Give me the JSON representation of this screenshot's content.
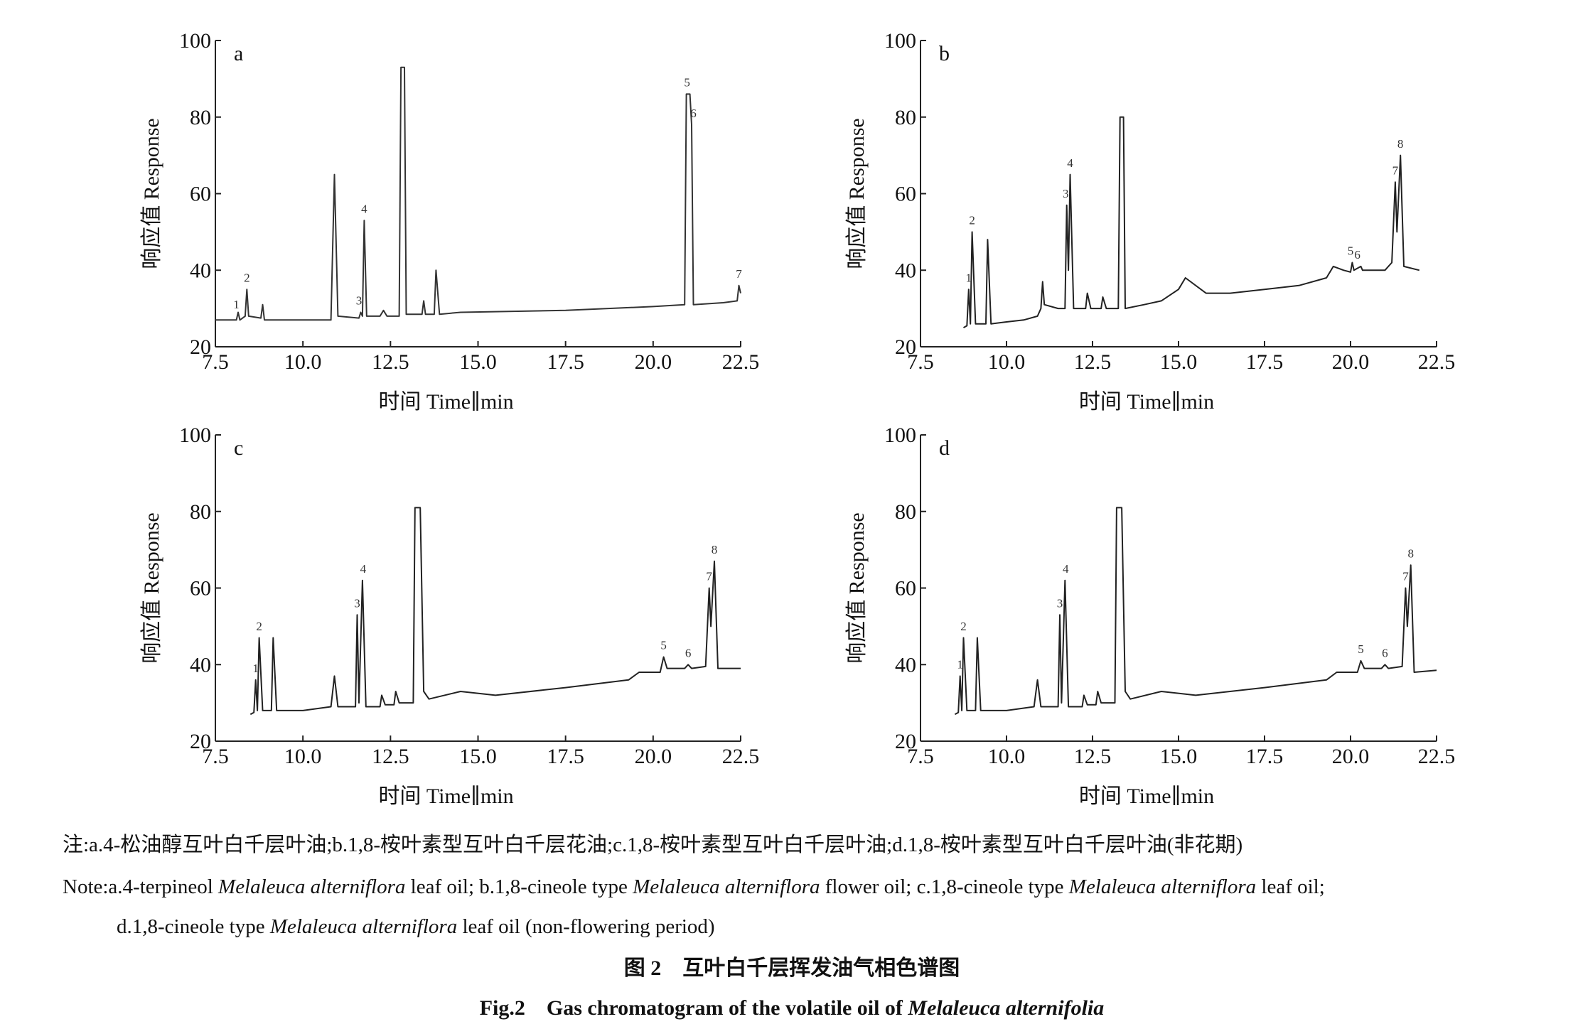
{
  "chart_data": [
    {
      "type": "line",
      "title": "a",
      "x_label": "时间 Time∥min",
      "y_label": "响应值 Response",
      "xlim": [
        7.5,
        22.5
      ],
      "ylim": [
        20,
        100
      ],
      "xticks": [
        7.5,
        {
          "value": 10,
          "label": "10.0"
        },
        12.5,
        {
          "value": 15,
          "label": "15.0"
        },
        17.5,
        {
          "value": 20,
          "label": "20.0"
        },
        22.5
      ],
      "yticks": [
        20,
        40,
        60,
        80,
        100
      ],
      "series": [
        {
          "color": "#333333",
          "x": [
            7.5,
            8.1,
            8.15,
            8.2,
            8.35,
            8.4,
            8.45,
            8.8,
            8.85,
            8.9,
            10.8,
            10.9,
            11.0,
            11.6,
            11.65,
            11.7,
            11.75,
            11.82,
            12.2,
            12.3,
            12.4,
            12.75,
            12.8,
            12.9,
            12.95,
            13.4,
            13.45,
            13.5,
            13.75,
            13.8,
            13.9,
            14.5,
            17.5,
            20.0,
            20.9,
            20.95,
            21.05,
            21.1,
            21.15,
            22.0,
            22.4,
            22.45,
            22.5
          ],
          "values": [
            27,
            27,
            29,
            27,
            28,
            35,
            28,
            27.5,
            31,
            27,
            27,
            65,
            28,
            27.5,
            29,
            28,
            53,
            28,
            28,
            29.5,
            28,
            28,
            93,
            93,
            28.5,
            28.5,
            32,
            28.5,
            28.5,
            40,
            28.5,
            29,
            29.5,
            30.5,
            31,
            86,
            86,
            78,
            31,
            31.5,
            32,
            36,
            34
          ]
        }
      ],
      "annotations": [
        {
          "text": "1",
          "x": 8.1,
          "y": 30
        },
        {
          "text": "2",
          "x": 8.4,
          "y": 37
        },
        {
          "text": "3",
          "x": 11.6,
          "y": 31
        },
        {
          "text": "4",
          "x": 11.75,
          "y": 55
        },
        {
          "text": "5",
          "x": 20.97,
          "y": 88
        },
        {
          "text": "6",
          "x": 21.15,
          "y": 80
        },
        {
          "text": "7",
          "x": 22.45,
          "y": 38
        }
      ]
    },
    {
      "type": "line",
      "title": "b",
      "x_label": "时间 Time∥min",
      "y_label": "响应值 Response",
      "xlim": [
        7.5,
        22.5
      ],
      "ylim": [
        20,
        100
      ],
      "xticks": [
        7.5,
        {
          "value": 10,
          "label": "10.0"
        },
        12.5,
        {
          "value": 15,
          "label": "15.0"
        },
        17.5,
        {
          "value": 20,
          "label": "20.0"
        },
        22.5
      ],
      "yticks": [
        20,
        40,
        60,
        80,
        100
      ],
      "series": [
        {
          "color": "#222222",
          "x": [
            8.75,
            8.85,
            8.9,
            8.95,
            9.0,
            9.1,
            9.4,
            9.45,
            9.55,
            10.0,
            10.5,
            10.9,
            11.0,
            11.05,
            11.1,
            11.5,
            11.7,
            11.75,
            11.8,
            11.85,
            11.95,
            12.3,
            12.35,
            12.45,
            12.75,
            12.8,
            12.9,
            13.25,
            13.3,
            13.4,
            13.45,
            14.0,
            14.5,
            15.0,
            15.2,
            15.8,
            16.5,
            17.5,
            18.5,
            19.3,
            19.5,
            19.8,
            20.0,
            20.05,
            20.1,
            20.3,
            20.35,
            21.0,
            21.2,
            21.3,
            21.35,
            21.45,
            21.55,
            22.0
          ],
          "values": [
            25,
            25.5,
            35,
            26,
            50,
            26,
            26,
            48,
            26,
            26.5,
            27,
            28,
            30,
            37,
            31,
            30,
            30,
            57,
            40,
            65,
            30,
            30,
            34,
            30,
            30,
            33,
            30,
            30,
            80,
            80,
            30,
            31,
            32,
            35,
            38,
            34,
            34,
            35,
            36,
            38,
            41,
            40,
            39.5,
            42,
            40,
            41,
            40,
            40,
            42,
            63,
            50,
            70,
            41,
            40
          ]
        }
      ],
      "annotations": [
        {
          "text": "1",
          "x": 8.9,
          "y": 37
        },
        {
          "text": "2",
          "x": 9.0,
          "y": 52
        },
        {
          "text": "3",
          "x": 11.72,
          "y": 59
        },
        {
          "text": "4",
          "x": 11.85,
          "y": 67
        },
        {
          "text": "5",
          "x": 20.0,
          "y": 44
        },
        {
          "text": "6",
          "x": 20.2,
          "y": 43
        },
        {
          "text": "7",
          "x": 21.3,
          "y": 65
        },
        {
          "text": "8",
          "x": 21.45,
          "y": 72
        }
      ]
    },
    {
      "type": "line",
      "title": "c",
      "x_label": "时间 Time∥min",
      "y_label": "响应值 Response",
      "xlim": [
        7.5,
        22.5
      ],
      "ylim": [
        20,
        100
      ],
      "xticks": [
        7.5,
        {
          "value": 10,
          "label": "10.0"
        },
        12.5,
        {
          "value": 15,
          "label": "15.0"
        },
        17.5,
        {
          "value": 20,
          "label": "20.0"
        },
        22.5
      ],
      "yticks": [
        20,
        40,
        60,
        80,
        100
      ],
      "series": [
        {
          "color": "#222222",
          "x": [
            8.5,
            8.6,
            8.65,
            8.7,
            8.75,
            8.85,
            9.1,
            9.15,
            9.25,
            10.0,
            10.8,
            10.9,
            11.0,
            11.5,
            11.55,
            11.6,
            11.7,
            11.8,
            12.2,
            12.25,
            12.35,
            12.6,
            12.65,
            12.75,
            13.15,
            13.2,
            13.35,
            13.45,
            13.6,
            14.5,
            15.5,
            17.5,
            19.3,
            19.6,
            20.2,
            20.3,
            20.4,
            20.9,
            21.0,
            21.1,
            21.5,
            21.6,
            21.65,
            21.75,
            21.85,
            22.5
          ],
          "values": [
            27,
            27.5,
            36,
            28,
            47,
            28,
            28,
            47,
            28,
            28,
            29,
            37,
            29,
            29,
            53,
            30,
            62,
            29,
            29,
            32,
            29.5,
            29.5,
            33,
            30,
            30,
            81,
            81,
            33,
            31,
            33,
            32,
            34,
            36,
            38,
            38,
            42,
            39,
            39,
            40,
            39,
            39.5,
            60,
            50,
            67,
            39,
            39
          ]
        }
      ],
      "annotations": [
        {
          "text": "1",
          "x": 8.65,
          "y": 38
        },
        {
          "text": "2",
          "x": 8.75,
          "y": 49
        },
        {
          "text": "3",
          "x": 11.55,
          "y": 55
        },
        {
          "text": "4",
          "x": 11.72,
          "y": 64
        },
        {
          "text": "5",
          "x": 20.3,
          "y": 44
        },
        {
          "text": "6",
          "x": 21.0,
          "y": 42
        },
        {
          "text": "7",
          "x": 21.6,
          "y": 62
        },
        {
          "text": "8",
          "x": 21.75,
          "y": 69
        }
      ]
    },
    {
      "type": "line",
      "title": "d",
      "x_label": "时间 Time∥min",
      "y_label": "响应值 Response",
      "xlim": [
        7.5,
        22.5
      ],
      "ylim": [
        20,
        100
      ],
      "xticks": [
        7.5,
        {
          "value": 10,
          "label": "10.0"
        },
        12.5,
        {
          "value": 15,
          "label": "15.0"
        },
        17.5,
        {
          "value": 20,
          "label": "20.0"
        },
        22.5
      ],
      "yticks": [
        20,
        40,
        60,
        80,
        100
      ],
      "series": [
        {
          "color": "#222222",
          "x": [
            8.5,
            8.6,
            8.65,
            8.7,
            8.75,
            8.85,
            9.1,
            9.15,
            9.25,
            10.0,
            10.8,
            10.9,
            11.0,
            11.5,
            11.55,
            11.6,
            11.7,
            11.8,
            12.2,
            12.25,
            12.35,
            12.6,
            12.65,
            12.75,
            13.15,
            13.2,
            13.35,
            13.45,
            13.6,
            14.5,
            15.5,
            17.5,
            19.3,
            19.6,
            20.2,
            20.3,
            20.4,
            20.9,
            21.0,
            21.1,
            21.5,
            21.6,
            21.65,
            21.75,
            21.85,
            22.5
          ],
          "values": [
            27,
            27.5,
            37,
            28,
            47,
            28,
            28,
            47,
            28,
            28,
            29,
            36,
            29,
            29,
            53,
            30,
            62,
            29,
            29,
            32,
            29.5,
            29.5,
            33,
            30,
            30,
            81,
            81,
            33,
            31,
            33,
            32,
            34,
            36,
            38,
            38,
            41,
            39,
            39,
            40,
            39,
            39.5,
            60,
            50,
            66,
            38,
            38.5
          ]
        }
      ],
      "annotations": [
        {
          "text": "1",
          "x": 8.65,
          "y": 39
        },
        {
          "text": "2",
          "x": 8.75,
          "y": 49
        },
        {
          "text": "3",
          "x": 11.55,
          "y": 55
        },
        {
          "text": "4",
          "x": 11.72,
          "y": 64
        },
        {
          "text": "5",
          "x": 20.3,
          "y": 43
        },
        {
          "text": "6",
          "x": 21.0,
          "y": 42
        },
        {
          "text": "7",
          "x": 21.6,
          "y": 62
        },
        {
          "text": "8",
          "x": 21.75,
          "y": 68
        }
      ]
    }
  ],
  "caption": {
    "note_zh": "注:a.4-松油醇互叶白千层叶油;b.1,8-桉叶素型互叶白千层花油;c.1,8-桉叶素型互叶白千层叶油;d.1,8-桉叶素型互叶白千层叶油(非花期)",
    "note_en_1": [
      {
        "text": "Note:a.4-terpineol "
      },
      {
        "text": "Melaleuca alterniflora",
        "italic": true
      },
      {
        "text": " leaf oil; b.1,8-cineole type "
      },
      {
        "text": "Melaleuca alterniflora",
        "italic": true
      },
      {
        "text": " flower oil; c.1,8-cineole type "
      },
      {
        "text": "Melaleuca alterniflora",
        "italic": true
      },
      {
        "text": " leaf oil;"
      }
    ],
    "note_en_2": [
      {
        "text": "d.1,8-cineole type "
      },
      {
        "text": "Melaleuca alterniflora",
        "italic": true
      },
      {
        "text": " leaf oil (non-flowering period)"
      }
    ],
    "title_zh": "图 2　互叶白千层挥发油气相色谱图",
    "title_en": [
      {
        "text": "Fig.2　Gas chromatogram of the volatile oil of "
      },
      {
        "text": "Melaleuca alternifolia",
        "italic": true
      }
    ]
  }
}
